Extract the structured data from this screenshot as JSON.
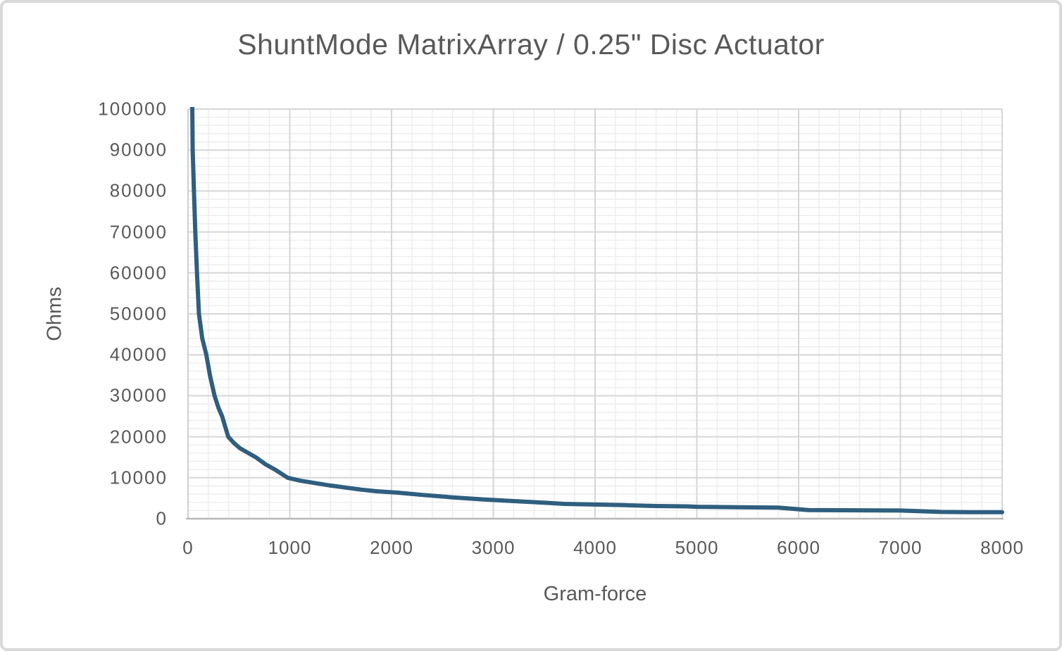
{
  "chart": {
    "title": "ShuntMode MatrixArray / 0.25\" Disc Actuator",
    "x_axis_title": "Gram-force",
    "y_axis_title": "Ohms"
  },
  "chart_data": {
    "type": "line",
    "title": "ShuntMode MatrixArray / 0.25\" Disc Actuator",
    "xlabel": "Gram-force",
    "ylabel": "Ohms",
    "xlim": [
      0,
      8000
    ],
    "ylim": [
      0,
      100000
    ],
    "x_tick_step": 1000,
    "y_tick_step": 10000,
    "x_minor_step": 200,
    "y_minor_step": 2000,
    "x_ticks": [
      "0",
      "1000",
      "2000",
      "3000",
      "4000",
      "5000",
      "6000",
      "7000",
      "8000"
    ],
    "y_ticks": [
      "0",
      "10000",
      "20000",
      "30000",
      "40000",
      "50000",
      "60000",
      "70000",
      "80000",
      "90000",
      "100000"
    ],
    "grid": "major+minor",
    "legend": "none",
    "series": [
      {
        "color": "#2F5E7F",
        "points": [
          [
            30,
            130000
          ],
          [
            40,
            105000
          ],
          [
            46,
            90000
          ],
          [
            58,
            80000
          ],
          [
            71,
            70000
          ],
          [
            88,
            60000
          ],
          [
            107,
            50000
          ],
          [
            140,
            44000
          ],
          [
            180,
            40000
          ],
          [
            215,
            35000
          ],
          [
            261,
            30000
          ],
          [
            300,
            27000
          ],
          [
            335,
            25000
          ],
          [
            365,
            22500
          ],
          [
            395,
            20000
          ],
          [
            450,
            18500
          ],
          [
            510,
            17200
          ],
          [
            580,
            16200
          ],
          [
            666,
            15000
          ],
          [
            760,
            13300
          ],
          [
            860,
            11900
          ],
          [
            978,
            10000
          ],
          [
            1100,
            9300
          ],
          [
            1250,
            8700
          ],
          [
            1400,
            8100
          ],
          [
            1550,
            7600
          ],
          [
            1700,
            7100
          ],
          [
            1850,
            6700
          ],
          [
            2060,
            6360
          ],
          [
            2300,
            5800
          ],
          [
            2600,
            5200
          ],
          [
            2900,
            4700
          ],
          [
            3200,
            4300
          ],
          [
            3500,
            3900
          ],
          [
            3700,
            3600
          ],
          [
            4000,
            3450
          ],
          [
            4300,
            3300
          ],
          [
            4600,
            3100
          ],
          [
            4900,
            3000
          ],
          [
            5000,
            2900
          ],
          [
            5400,
            2800
          ],
          [
            5800,
            2700
          ],
          [
            6100,
            2100
          ],
          [
            6600,
            2050
          ],
          [
            7000,
            2000
          ],
          [
            7400,
            1650
          ],
          [
            7700,
            1600
          ],
          [
            8000,
            1600
          ]
        ]
      }
    ]
  },
  "colors": {
    "background": "#FFFFFF",
    "frame_border": "#D9D9D9",
    "title_text": "#595959",
    "axis_text": "#595959",
    "major_grid": "#D6D6D6",
    "minor_grid": "#ECECEC",
    "left_axis_line": "#CFCFCF",
    "bottom_axis_line": "#B7B7B7",
    "series_line": "#2F5E7F"
  }
}
